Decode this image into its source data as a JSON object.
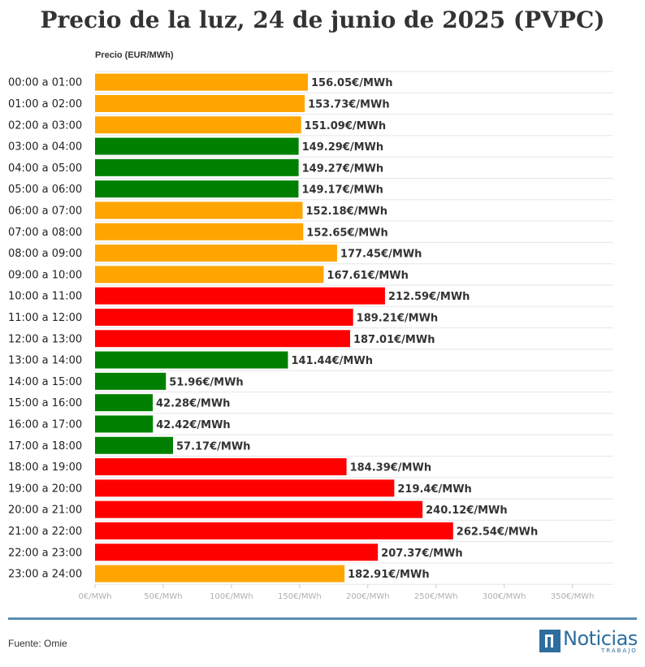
{
  "chart_data": {
    "type": "bar",
    "orientation": "horizontal",
    "title": "Precio de la luz, 24 de junio de 2025 (PVPC)",
    "ylabel": "Precio (EUR/MWh)",
    "xlim": [
      0,
      380
    ],
    "x_ticks": [
      0,
      50,
      100,
      150,
      200,
      250,
      300,
      350
    ],
    "x_tick_labels": [
      "0€/MWh",
      "50€/MWh",
      "100€/MWh",
      "150€/MWh",
      "200€/MWh",
      "250€/MWh",
      "300€/MWh",
      "350€/MWh"
    ],
    "grid": true,
    "categories": [
      "00:00 a 01:00",
      "01:00 a 02:00",
      "02:00 a 03:00",
      "03:00 a 04:00",
      "04:00 a 05:00",
      "05:00 a 06:00",
      "06:00 a 07:00",
      "07:00 a 08:00",
      "08:00 a 09:00",
      "09:00 a 10:00",
      "10:00 a 11:00",
      "11:00 a 12:00",
      "12:00 a 13:00",
      "13:00 a 14:00",
      "14:00 a 15:00",
      "15:00 a 16:00",
      "16:00 a 17:00",
      "17:00 a 18:00",
      "18:00 a 19:00",
      "19:00 a 20:00",
      "20:00 a 21:00",
      "21:00 a 22:00",
      "22:00 a 23:00",
      "23:00 a 24:00"
    ],
    "values": [
      156.05,
      153.73,
      151.09,
      149.29,
      149.27,
      149.17,
      152.18,
      152.65,
      177.45,
      167.61,
      212.59,
      189.21,
      187.01,
      141.44,
      51.96,
      42.28,
      42.42,
      57.17,
      184.39,
      219.4,
      240.12,
      262.54,
      207.37,
      182.91
    ],
    "value_labels": [
      "156.05€/MWh",
      "153.73€/MWh",
      "151.09€/MWh",
      "149.29€/MWh",
      "149.27€/MWh",
      "149.17€/MWh",
      "152.18€/MWh",
      "152.65€/MWh",
      "177.45€/MWh",
      "167.61€/MWh",
      "212.59€/MWh",
      "189.21€/MWh",
      "187.01€/MWh",
      "141.44€/MWh",
      "51.96€/MWh",
      "42.28€/MWh",
      "42.42€/MWh",
      "57.17€/MWh",
      "184.39€/MWh",
      "219.4€/MWh",
      "240.12€/MWh",
      "262.54€/MWh",
      "207.37€/MWh",
      "182.91€/MWh"
    ],
    "levels": [
      "medio",
      "medio",
      "medio",
      "bajo",
      "bajo",
      "bajo",
      "medio",
      "medio",
      "medio",
      "medio",
      "alto",
      "alto",
      "alto",
      "bajo",
      "bajo",
      "bajo",
      "bajo",
      "bajo",
      "alto",
      "alto",
      "alto",
      "alto",
      "alto",
      "medio"
    ]
  },
  "colors": {
    "bajo": "#008000",
    "medio": "#ffa500",
    "alto": "#ff0000",
    "grid": "#e6e6e6",
    "rule": "#5b8db0"
  },
  "footer": {
    "source": "Fuente: Omie",
    "logo_name": "Noticias",
    "logo_sub": "TRABAJO"
  }
}
